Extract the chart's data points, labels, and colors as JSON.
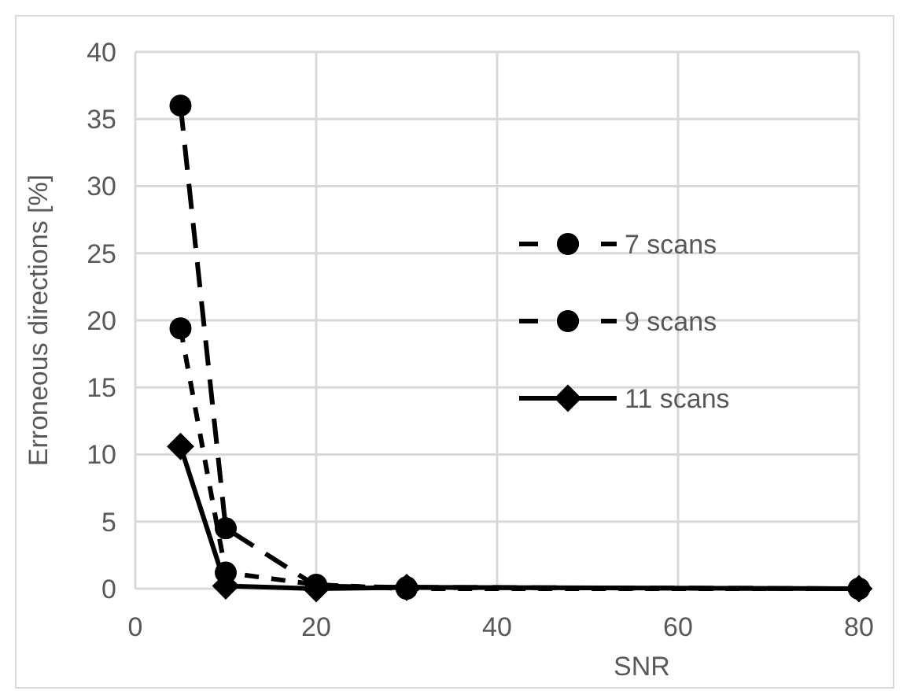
{
  "chart_data": {
    "type": "line",
    "xlabel": "SNR",
    "ylabel": "Erroneous directions [%]",
    "x": [
      5,
      10,
      20,
      30,
      80
    ],
    "xlim": [
      0,
      80
    ],
    "xticks": [
      0,
      20,
      40,
      60,
      80
    ],
    "ylim": [
      0,
      40
    ],
    "yticks": [
      0,
      5,
      10,
      15,
      20,
      25,
      30,
      35,
      40
    ],
    "grid": true,
    "legend": "right",
    "series": [
      {
        "name": "7 scans",
        "color": "#000000",
        "values": [
          36,
          4.5,
          0.2,
          0.1,
          0
        ],
        "marker": "circle",
        "line_style": "dashed"
      },
      {
        "name": "9 scans",
        "color": "#000000",
        "values": [
          19.4,
          1.2,
          0.3,
          0,
          0
        ],
        "marker": "circle",
        "line_style": "dashed"
      },
      {
        "name": "11 scans",
        "color": "#000000",
        "values": [
          10.6,
          0.2,
          0,
          0.1,
          0
        ],
        "marker": "diamond",
        "line_style": "solid"
      }
    ]
  }
}
